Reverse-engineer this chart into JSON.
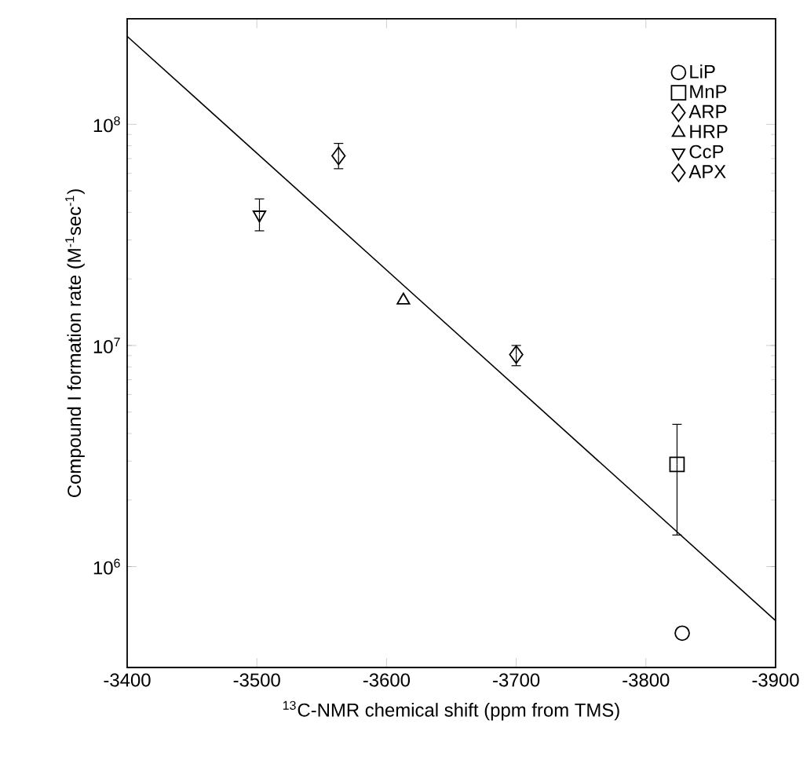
{
  "chart_data": {
    "type": "scatter",
    "xlabel": "$^{13}$C-NMR chemical shift (ppm from TMS)",
    "ylabel": "Compound I formation rate (M$^{-1}$sec$^{-1}$)",
    "log": "y",
    "xlim": [
      -3400,
      -3900
    ],
    "ylim": [
      350000,
      300000000
    ],
    "xticks": [
      -3400,
      -3500,
      -3600,
      -3700,
      -3800,
      -3900
    ],
    "yticks": [
      {
        "value": 1000000,
        "label": "10$^{6}$"
      },
      {
        "value": 10000000,
        "label": "10$^{7}$"
      },
      {
        "value": 100000000,
        "label": "10$^{8}$"
      }
    ],
    "legend": "top right",
    "grid": false,
    "series": [
      {
        "name": "LiP",
        "color": "#000000",
        "marker": "circle",
        "x": [
          -3828
        ],
        "values": [
          500000
        ]
      },
      {
        "name": "MnP",
        "color": "#000000",
        "marker": "square",
        "x": [
          -3824
        ],
        "values": [
          2900000
        ],
        "errors": [
          [
            1390000,
            4400000
          ]
        ]
      },
      {
        "name": "ARP",
        "color": "#000000",
        "marker": "diamond",
        "x": [
          -3700
        ],
        "values": [
          9100000
        ],
        "errors": [
          [
            8100000,
            10000000
          ]
        ]
      },
      {
        "name": "HRP",
        "color": "#000000",
        "marker": "triangle",
        "x": [
          -3613
        ],
        "values": [
          16000000
        ]
      },
      {
        "name": "CcP",
        "color": "#000000",
        "marker": "triangle-down",
        "x": [
          -3502
        ],
        "values": [
          39000000
        ],
        "errors": [
          [
            33000000,
            46000000
          ]
        ]
      },
      {
        "name": "APX",
        "color": "#000000",
        "marker": "diamond",
        "x": [
          -3563
        ],
        "values": [
          72000000
        ],
        "errors": [
          [
            63000000,
            82000000
          ]
        ]
      },
      {
        "type": "line",
        "color": "#000000",
        "marker": "none",
        "x": [
          -3400,
          -3900
        ],
        "values": [
          250000000,
          570000
        ]
      }
    ]
  }
}
